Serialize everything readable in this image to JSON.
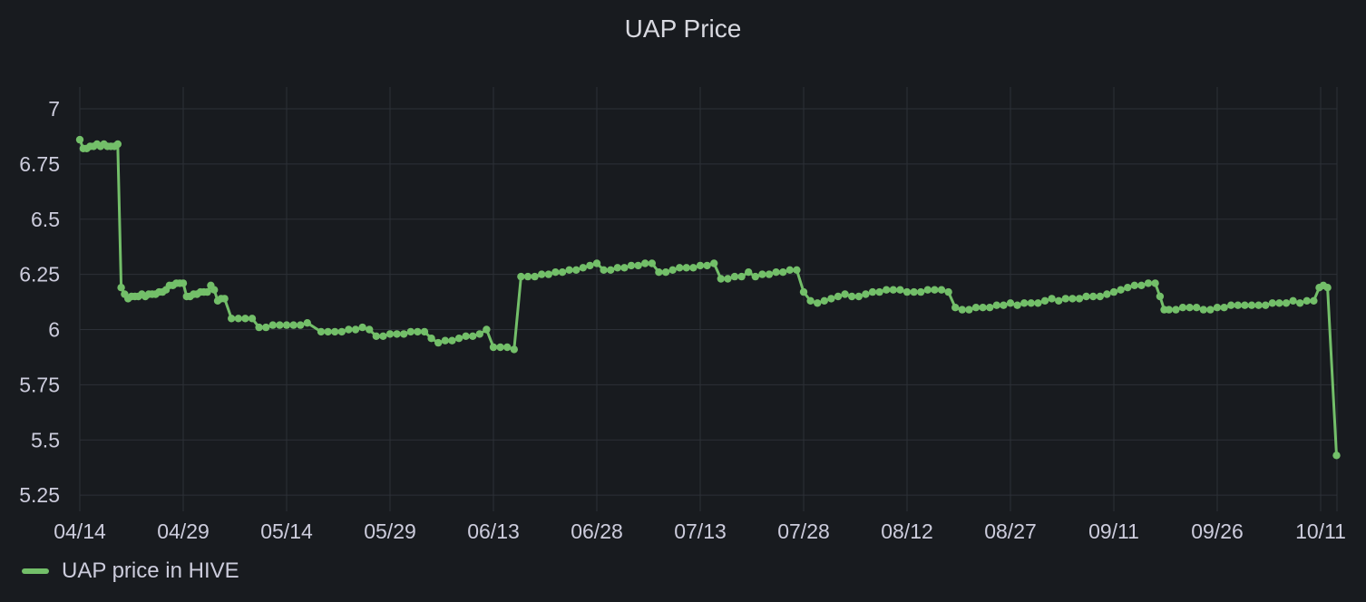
{
  "panel": {
    "title": "UAP Price"
  },
  "colors": {
    "background": "#181b1f",
    "grid": "#2c3037",
    "series": "#73bf69",
    "text": "#ccccdc"
  },
  "chart_data": {
    "type": "line",
    "title": "UAP Price",
    "xlabel": "",
    "ylabel": "",
    "grid": true,
    "legend_position": "bottom-left",
    "x_ticks": [
      "04/14",
      "04/29",
      "05/14",
      "05/29",
      "06/13",
      "06/28",
      "07/13",
      "07/28",
      "08/12",
      "08/27",
      "09/11",
      "09/26",
      "10/11"
    ],
    "y_ticks": [
      "5.25",
      "5.5",
      "5.75",
      "6",
      "6.25",
      "6.5",
      "6.75",
      "7"
    ],
    "ylim": [
      5.18,
      7.1
    ],
    "xlim_days": [
      -0.1,
      182.5
    ],
    "series": [
      {
        "name": "UAP price in HIVE",
        "color": "#73bf69",
        "points": [
          [
            0,
            6.86
          ],
          [
            0.5,
            6.82
          ],
          [
            1,
            6.82
          ],
          [
            1.5,
            6.83
          ],
          [
            2,
            6.83
          ],
          [
            2.5,
            6.84
          ],
          [
            3,
            6.83
          ],
          [
            3.5,
            6.84
          ],
          [
            4,
            6.83
          ],
          [
            4.5,
            6.83
          ],
          [
            5,
            6.83
          ],
          [
            5.5,
            6.84
          ],
          [
            6,
            6.19
          ],
          [
            6.5,
            6.16
          ],
          [
            7,
            6.14
          ],
          [
            7.5,
            6.15
          ],
          [
            8,
            6.15
          ],
          [
            8.5,
            6.15
          ],
          [
            9,
            6.16
          ],
          [
            9.5,
            6.15
          ],
          [
            10,
            6.16
          ],
          [
            10.5,
            6.16
          ],
          [
            11,
            6.16
          ],
          [
            11.5,
            6.17
          ],
          [
            12,
            6.17
          ],
          [
            12.5,
            6.18
          ],
          [
            13,
            6.2
          ],
          [
            13.5,
            6.2
          ],
          [
            14,
            6.21
          ],
          [
            14.5,
            6.21
          ],
          [
            15,
            6.21
          ],
          [
            15.5,
            6.15
          ],
          [
            16,
            6.15
          ],
          [
            16.5,
            6.16
          ],
          [
            17,
            6.16
          ],
          [
            17.5,
            6.17
          ],
          [
            18,
            6.17
          ],
          [
            18.5,
            6.17
          ],
          [
            19,
            6.2
          ],
          [
            19.5,
            6.18
          ],
          [
            20,
            6.13
          ],
          [
            20.5,
            6.14
          ],
          [
            21,
            6.14
          ],
          [
            22,
            6.05
          ],
          [
            23,
            6.05
          ],
          [
            24,
            6.05
          ],
          [
            25,
            6.05
          ],
          [
            26,
            6.01
          ],
          [
            27,
            6.01
          ],
          [
            28,
            6.02
          ],
          [
            29,
            6.02
          ],
          [
            30,
            6.02
          ],
          [
            31,
            6.02
          ],
          [
            32,
            6.02
          ],
          [
            33,
            6.03
          ],
          [
            35,
            5.99
          ],
          [
            36,
            5.99
          ],
          [
            37,
            5.99
          ],
          [
            38,
            5.99
          ],
          [
            39,
            6.0
          ],
          [
            40,
            6.0
          ],
          [
            41,
            6.01
          ],
          [
            42,
            6.0
          ],
          [
            43,
            5.97
          ],
          [
            44,
            5.97
          ],
          [
            45,
            5.98
          ],
          [
            46,
            5.98
          ],
          [
            47,
            5.98
          ],
          [
            48,
            5.99
          ],
          [
            49,
            5.99
          ],
          [
            50,
            5.99
          ],
          [
            51,
            5.96
          ],
          [
            52,
            5.94
          ],
          [
            53,
            5.95
          ],
          [
            54,
            5.95
          ],
          [
            55,
            5.96
          ],
          [
            56,
            5.97
          ],
          [
            57,
            5.97
          ],
          [
            58,
            5.98
          ],
          [
            59,
            6.0
          ],
          [
            60,
            5.92
          ],
          [
            61,
            5.92
          ],
          [
            62,
            5.92
          ],
          [
            63,
            5.91
          ],
          [
            64,
            6.24
          ],
          [
            65,
            6.24
          ],
          [
            66,
            6.24
          ],
          [
            67,
            6.25
          ],
          [
            68,
            6.25
          ],
          [
            69,
            6.26
          ],
          [
            70,
            6.26
          ],
          [
            71,
            6.27
          ],
          [
            72,
            6.27
          ],
          [
            73,
            6.28
          ],
          [
            74,
            6.29
          ],
          [
            75,
            6.3
          ],
          [
            76,
            6.27
          ],
          [
            77,
            6.27
          ],
          [
            78,
            6.28
          ],
          [
            79,
            6.28
          ],
          [
            80,
            6.29
          ],
          [
            81,
            6.29
          ],
          [
            82,
            6.3
          ],
          [
            83,
            6.3
          ],
          [
            84,
            6.26
          ],
          [
            85,
            6.26
          ],
          [
            86,
            6.27
          ],
          [
            87,
            6.28
          ],
          [
            88,
            6.28
          ],
          [
            89,
            6.28
          ],
          [
            90,
            6.29
          ],
          [
            91,
            6.29
          ],
          [
            92,
            6.3
          ],
          [
            93,
            6.23
          ],
          [
            94,
            6.23
          ],
          [
            95,
            6.24
          ],
          [
            96,
            6.24
          ],
          [
            97,
            6.26
          ],
          [
            98,
            6.24
          ],
          [
            99,
            6.25
          ],
          [
            100,
            6.25
          ],
          [
            101,
            6.26
          ],
          [
            102,
            6.26
          ],
          [
            103,
            6.27
          ],
          [
            104,
            6.27
          ],
          [
            105,
            6.17
          ],
          [
            106,
            6.13
          ],
          [
            107,
            6.12
          ],
          [
            108,
            6.13
          ],
          [
            109,
            6.14
          ],
          [
            110,
            6.15
          ],
          [
            111,
            6.16
          ],
          [
            112,
            6.15
          ],
          [
            113,
            6.15
          ],
          [
            114,
            6.16
          ],
          [
            115,
            6.17
          ],
          [
            116,
            6.17
          ],
          [
            117,
            6.18
          ],
          [
            118,
            6.18
          ],
          [
            119,
            6.18
          ],
          [
            120,
            6.17
          ],
          [
            121,
            6.17
          ],
          [
            122,
            6.17
          ],
          [
            123,
            6.18
          ],
          [
            124,
            6.18
          ],
          [
            125,
            6.18
          ],
          [
            126,
            6.17
          ],
          [
            127,
            6.1
          ],
          [
            128,
            6.09
          ],
          [
            129,
            6.09
          ],
          [
            130,
            6.1
          ],
          [
            131,
            6.1
          ],
          [
            132,
            6.1
          ],
          [
            133,
            6.11
          ],
          [
            134,
            6.11
          ],
          [
            135,
            6.12
          ],
          [
            136,
            6.11
          ],
          [
            137,
            6.12
          ],
          [
            138,
            6.12
          ],
          [
            139,
            6.12
          ],
          [
            140,
            6.13
          ],
          [
            141,
            6.14
          ],
          [
            142,
            6.13
          ],
          [
            143,
            6.14
          ],
          [
            144,
            6.14
          ],
          [
            145,
            6.14
          ],
          [
            146,
            6.15
          ],
          [
            147,
            6.15
          ],
          [
            148,
            6.15
          ],
          [
            149,
            6.16
          ],
          [
            150,
            6.17
          ],
          [
            151,
            6.18
          ],
          [
            152,
            6.19
          ],
          [
            153,
            6.2
          ],
          [
            154,
            6.2
          ],
          [
            155,
            6.21
          ],
          [
            156,
            6.21
          ],
          [
            156.7,
            6.15
          ],
          [
            157.3,
            6.09
          ],
          [
            158,
            6.09
          ],
          [
            159,
            6.09
          ],
          [
            160,
            6.1
          ],
          [
            161,
            6.1
          ],
          [
            162,
            6.1
          ],
          [
            163,
            6.09
          ],
          [
            164,
            6.09
          ],
          [
            165,
            6.1
          ],
          [
            166,
            6.1
          ],
          [
            167,
            6.11
          ],
          [
            168,
            6.11
          ],
          [
            169,
            6.11
          ],
          [
            170,
            6.11
          ],
          [
            171,
            6.11
          ],
          [
            172,
            6.11
          ],
          [
            173,
            6.12
          ],
          [
            174,
            6.12
          ],
          [
            175,
            6.12
          ],
          [
            176,
            6.13
          ],
          [
            177,
            6.12
          ],
          [
            178,
            6.13
          ],
          [
            179,
            6.13
          ],
          [
            179.8,
            6.19
          ],
          [
            180.4,
            6.2
          ],
          [
            181,
            6.19
          ],
          [
            182.3,
            5.43
          ]
        ]
      }
    ]
  }
}
